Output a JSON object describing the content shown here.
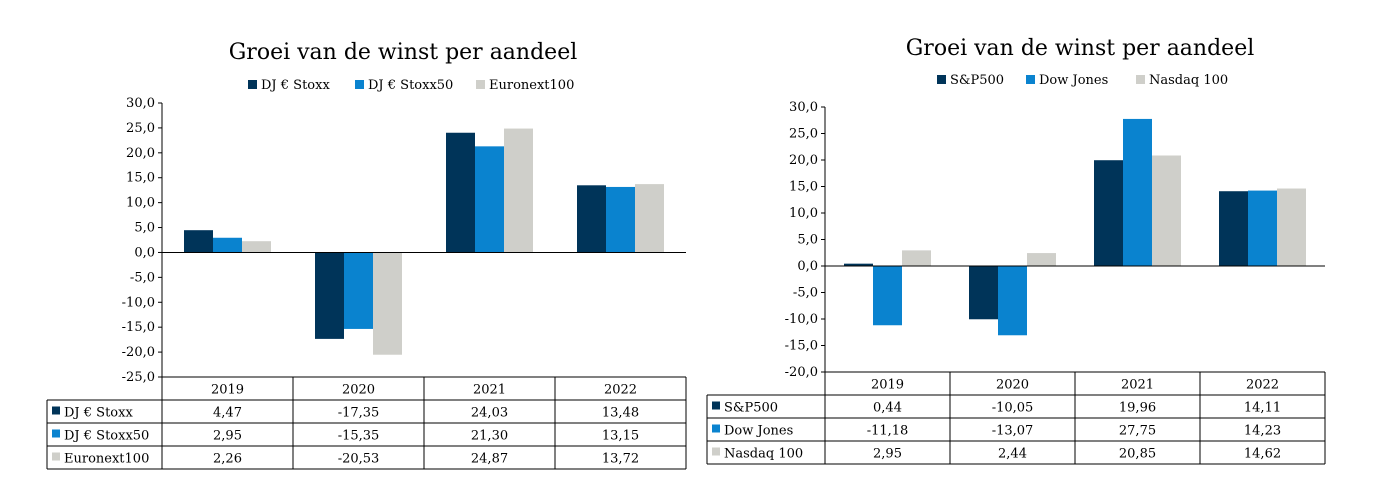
{
  "colors": {
    "series1": "#003459",
    "series2": "#0a83cf",
    "series3": "#cfcfca"
  },
  "chart_data": [
    {
      "type": "bar",
      "title": "Groei van de winst per aandeel",
      "categories": [
        "2019",
        "2020",
        "2021",
        "2022"
      ],
      "ylim": [
        -25,
        30
      ],
      "ytick_step": 5,
      "legend_position": "top",
      "with_data_table": true,
      "series": [
        {
          "name": "DJ € Stoxx",
          "values": [
            4.47,
            -17.35,
            24.03,
            13.48
          ],
          "labels": [
            "4,47",
            "-17,35",
            "24,03",
            "13,48"
          ]
        },
        {
          "name": "DJ € Stoxx50",
          "values": [
            2.95,
            -15.35,
            21.3,
            13.15
          ],
          "labels": [
            "2,95",
            "-15,35",
            "21,30",
            "13,15"
          ]
        },
        {
          "name": "Euronext100",
          "values": [
            2.26,
            -20.53,
            24.87,
            13.72
          ],
          "labels": [
            "2,26",
            "-20,53",
            "24,87",
            "13,72"
          ]
        }
      ]
    },
    {
      "type": "bar",
      "title": "Groei van de winst per aandeel",
      "categories": [
        "2019",
        "2020",
        "2021",
        "2022"
      ],
      "ylim": [
        -20,
        30
      ],
      "ytick_step": 5,
      "legend_position": "top",
      "with_data_table": true,
      "series": [
        {
          "name": "S&P500",
          "values": [
            0.44,
            -10.05,
            19.96,
            14.11
          ],
          "labels": [
            "0,44",
            "-10,05",
            "19,96",
            "14,11"
          ]
        },
        {
          "name": "Dow Jones",
          "values": [
            -11.18,
            -13.07,
            27.75,
            14.23
          ],
          "labels": [
            "-11,18",
            "-13,07",
            "27,75",
            "14,23"
          ]
        },
        {
          "name": "Nasdaq 100",
          "values": [
            2.95,
            2.44,
            20.85,
            14.62
          ],
          "labels": [
            "2,95",
            "2,44",
            "20,85",
            "14,62"
          ]
        }
      ]
    }
  ]
}
